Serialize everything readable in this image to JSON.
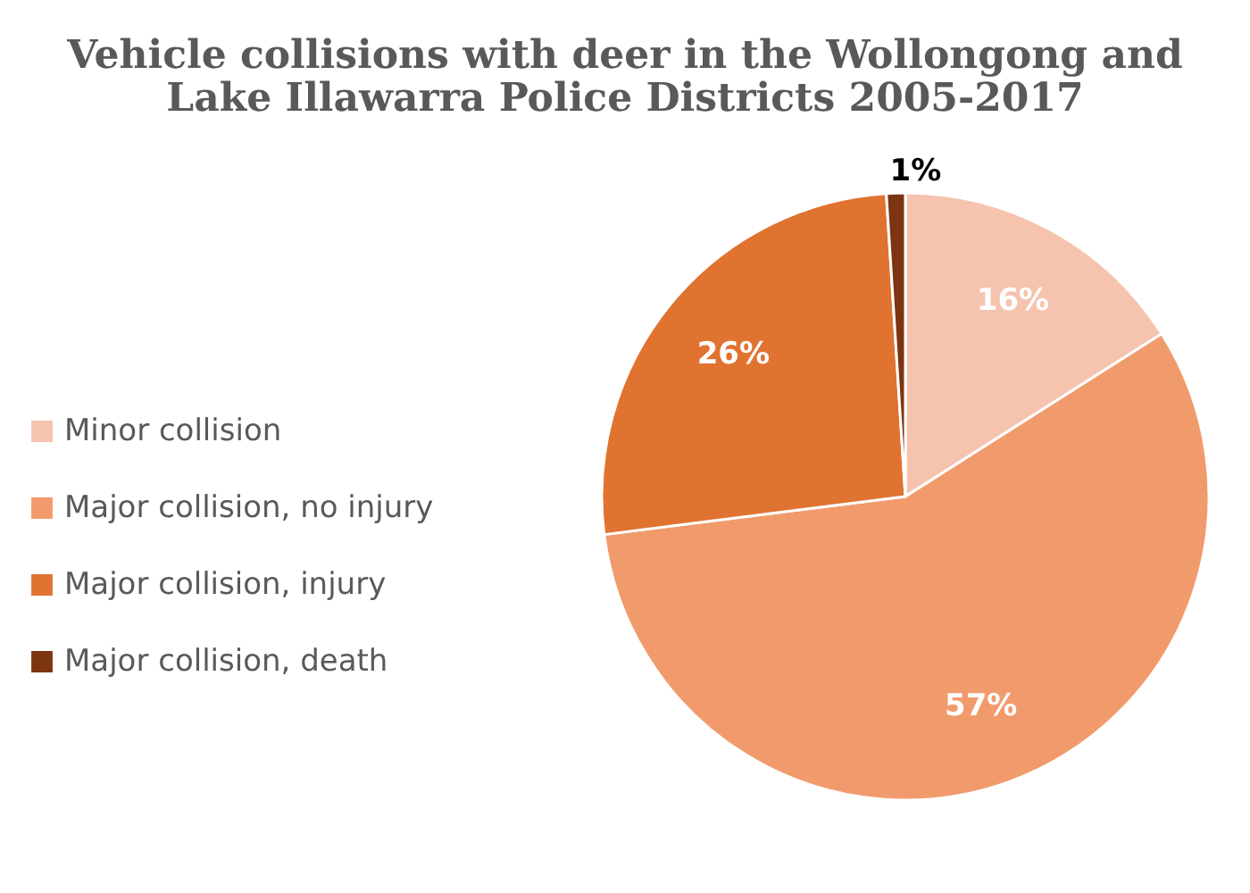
{
  "chart_data": {
    "type": "pie",
    "title": "Vehicle collisions with deer in the Wollongong and\nLake Illawarra Police Districts 2005-2017",
    "categories": [
      "Minor collision",
      "Major collision, no injury",
      "Major collision, injury",
      "Major collision, death"
    ],
    "values": [
      16,
      57,
      26,
      1
    ],
    "colors": [
      "#f6c4ae",
      "#f19b6d",
      "#e07330",
      "#7c3510"
    ],
    "value_labels": [
      "16%",
      "57%",
      "26%",
      "1%"
    ],
    "legend": "left"
  }
}
